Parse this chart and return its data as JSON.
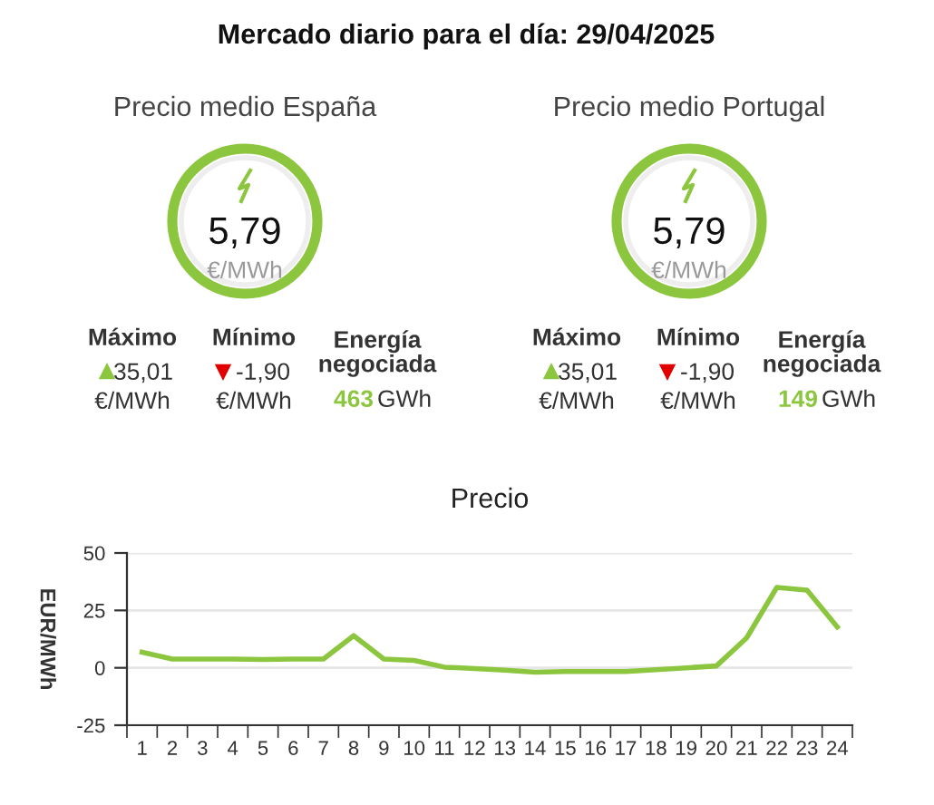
{
  "chart_data": [
    {
      "type": "other",
      "title": "Mercado diario para el día: 29/04/2025",
      "annotations": [
        "Precio medio España",
        "5,79",
        "€/MWh",
        "Máximo",
        "35,01",
        "€/MWh",
        "Mínimo",
        "-1,90",
        "€/MWh",
        "Energía\nnegociada",
        "463",
        "GWh",
        "Precio medio Portugal",
        "5,79",
        "€/MWh",
        "Máximo",
        "35,01",
        "€/MWh",
        "Mínimo",
        "-1,90",
        "€/MWh",
        "Energía\nnegociada",
        "149",
        "GWh"
      ]
    },
    {
      "type": "line",
      "title": "Precio",
      "ylabel": "EUR/MWh",
      "categories": [
        "1",
        "2",
        "3",
        "4",
        "5",
        "6",
        "7",
        "8",
        "9",
        "10",
        "11",
        "12",
        "13",
        "14",
        "15",
        "16",
        "17",
        "18",
        "19",
        "20",
        "21",
        "22",
        "23",
        "24"
      ],
      "series": [
        {
          "color": "#8cc63e",
          "values": [
            6.8,
            3.8,
            3.8,
            3.8,
            3.6,
            3.8,
            3.8,
            14,
            3.8,
            3.2,
            0.3,
            -0.3,
            -1,
            -1.9,
            -1.6,
            -1.6,
            -1.6,
            -0.8,
            0,
            0.8,
            13,
            35,
            33.8,
            17.8
          ]
        }
      ],
      "ylim": [
        -25,
        50
      ],
      "yticks": [
        -25,
        0,
        25,
        50
      ],
      "grid": "y"
    }
  ]
}
